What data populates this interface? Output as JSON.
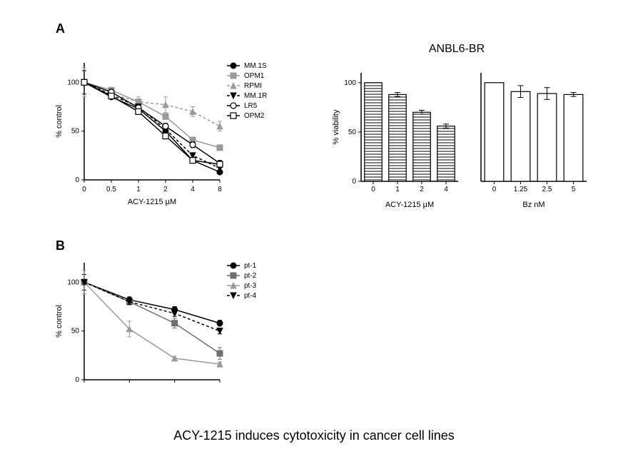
{
  "caption": "ACY-1215 induces cytotoxicity in cancer cell lines",
  "panelA": {
    "label": "A",
    "line": {
      "type": "line",
      "title": "",
      "xlabel_html": "ACY-1215 µM",
      "ylabel": "% control",
      "categories": [
        "0",
        "0.5",
        "1",
        "2",
        "4",
        "8"
      ],
      "ylim": [
        0,
        120
      ],
      "yticks": [
        0,
        50,
        100
      ],
      "axis_color": "#000000",
      "grid_color": "#ffffff",
      "label_fontsize": 11,
      "tick_fontsize": 10,
      "legend_fontsize": 10,
      "line_width": 1.5,
      "marker_size": 4,
      "series": [
        {
          "name": "MM.1S",
          "color": "#000000",
          "dash": "",
          "marker": "circleF",
          "y": [
            100,
            85,
            73,
            50,
            20,
            8
          ],
          "err": [
            2,
            2,
            2,
            3,
            2,
            2
          ]
        },
        {
          "name": "OPM1",
          "color": "#9a9a9a",
          "dash": "",
          "marker": "squareF",
          "y": [
            100,
            92,
            80,
            65,
            41,
            33
          ],
          "err": [
            2,
            2,
            2,
            3,
            2,
            2
          ]
        },
        {
          "name": "RPMI",
          "color": "#9a9a9a",
          "dash": "4,3",
          "marker": "triF",
          "y": [
            100,
            88,
            80,
            77,
            70,
            55
          ],
          "err": [
            15,
            5,
            5,
            8,
            5,
            5
          ]
        },
        {
          "name": "MM.1R",
          "color": "#000000",
          "dash": "4,3",
          "marker": "triDown",
          "y": [
            100,
            87,
            75,
            52,
            25,
            12
          ],
          "err": [
            2,
            2,
            2,
            3,
            2,
            2
          ]
        },
        {
          "name": "LR5",
          "color": "#000000",
          "dash": "",
          "marker": "circleO",
          "y": [
            100,
            90,
            74,
            55,
            36,
            17
          ],
          "err": [
            12,
            3,
            3,
            3,
            3,
            3
          ]
        },
        {
          "name": "OPM2",
          "color": "#000000",
          "dash": "",
          "marker": "squareO",
          "y": [
            100,
            86,
            70,
            45,
            20,
            16
          ],
          "err": [
            2,
            2,
            2,
            3,
            2,
            2
          ]
        }
      ]
    },
    "bars": {
      "title": "ANBL6-BR",
      "ylabel": "% viability",
      "ylim": [
        0,
        110
      ],
      "yticks": [
        0,
        50,
        100
      ],
      "axis_color": "#000000",
      "bar_border": "#000000",
      "bar_width": 0.72,
      "label_fontsize": 11,
      "tick_fontsize": 10,
      "left": {
        "xlabel_html": "ACY-1215 µM",
        "categories": [
          "0",
          "1",
          "2",
          "4"
        ],
        "values": [
          100,
          88,
          70,
          56
        ],
        "err": [
          0,
          2,
          2,
          2
        ],
        "pattern": "hatch",
        "fill": "#ffffff"
      },
      "right": {
        "xlabel": "Bz nM",
        "categories": [
          "0",
          "1.25",
          "2.5",
          "5"
        ],
        "values": [
          100,
          91,
          89,
          88
        ],
        "err": [
          0,
          6,
          6,
          2
        ],
        "pattern": "none",
        "fill": "#ffffff"
      }
    }
  },
  "panelB": {
    "label": "B",
    "line": {
      "type": "line",
      "xlabel": "",
      "ylabel": "% control",
      "categories": [
        "",
        "",
        "",
        ""
      ],
      "ylim": [
        0,
        120
      ],
      "yticks": [
        0,
        50,
        100
      ],
      "axis_color": "#000000",
      "label_fontsize": 11,
      "tick_fontsize": 10,
      "legend_fontsize": 10,
      "line_width": 1.5,
      "marker_size": 4,
      "series": [
        {
          "name": "pt-1",
          "color": "#000000",
          "dash": "",
          "marker": "circleF",
          "y": [
            100,
            82,
            72,
            58
          ],
          "err": [
            8,
            3,
            3,
            3
          ]
        },
        {
          "name": "pt-2",
          "color": "#6f6f6f",
          "dash": "",
          "marker": "squareF",
          "y": [
            100,
            80,
            58,
            27
          ],
          "err": [
            3,
            3,
            5,
            6
          ]
        },
        {
          "name": "pt-3",
          "color": "#9a9a9a",
          "dash": "",
          "marker": "triF",
          "y": [
            100,
            52,
            22,
            16
          ],
          "err": [
            12,
            8,
            2,
            2
          ]
        },
        {
          "name": "pt-4",
          "color": "#000000",
          "dash": "4,3",
          "marker": "triDown",
          "y": [
            100,
            80,
            68,
            50
          ],
          "err": [
            2,
            3,
            3,
            3
          ]
        }
      ]
    }
  }
}
